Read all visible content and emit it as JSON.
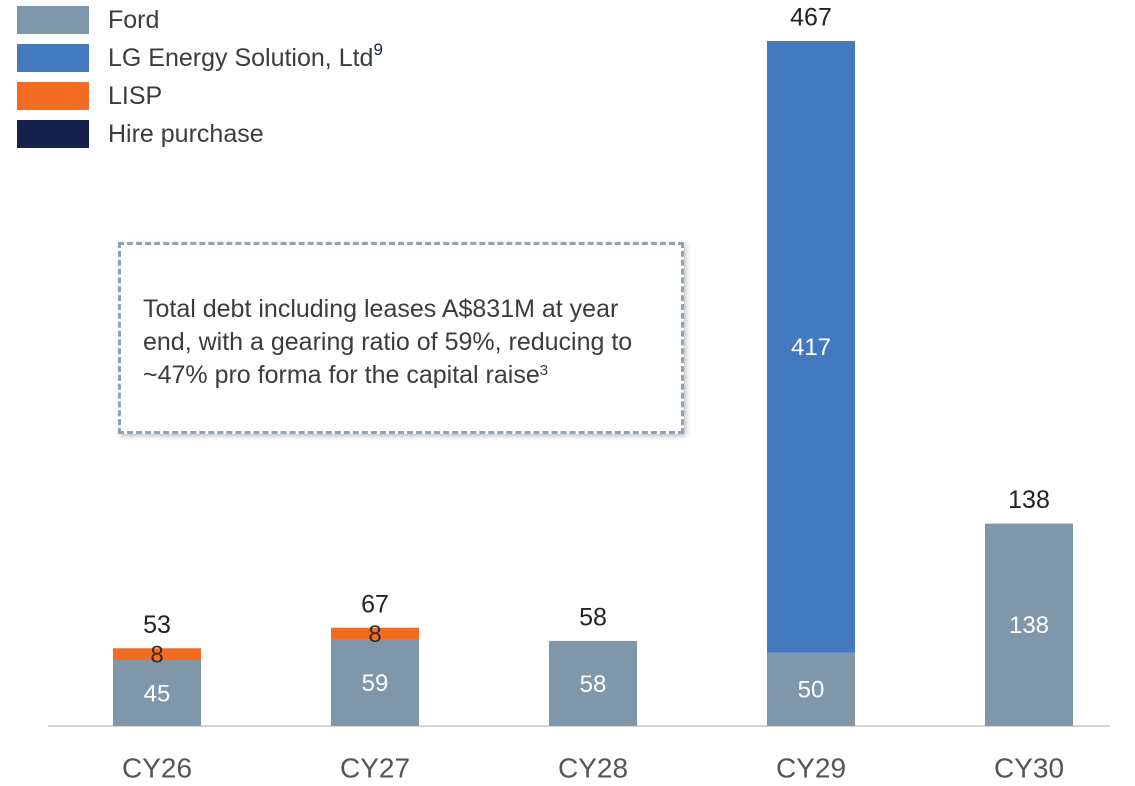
{
  "chart_data": {
    "type": "stacked_bar",
    "categories": [
      "CY26",
      "CY27",
      "CY28",
      "CY29",
      "CY30"
    ],
    "series": [
      {
        "name": "Ford",
        "color": "#7f97a9",
        "values": [
          45,
          59,
          58,
          50,
          138
        ]
      },
      {
        "name": "LG Energy Solution, Ltd",
        "name_note": "9",
        "color": "#4279bf",
        "values": [
          null,
          null,
          null,
          417,
          null
        ]
      },
      {
        "name": "LISP",
        "color": "#f26d21",
        "values": [
          8,
          8,
          null,
          null,
          null
        ]
      },
      {
        "name": "Hire purchase",
        "color": "#15224b",
        "values": [
          null,
          null,
          null,
          null,
          null
        ]
      }
    ],
    "totals": [
      53,
      67,
      58,
      467,
      138
    ],
    "ylim": [
      0,
      467
    ],
    "annotation": {
      "text": "Total debt including leases A$831M at year end, with a gearing ratio of 59%, reducing to ~47% pro forma for the capital raise",
      "note": "3"
    }
  }
}
